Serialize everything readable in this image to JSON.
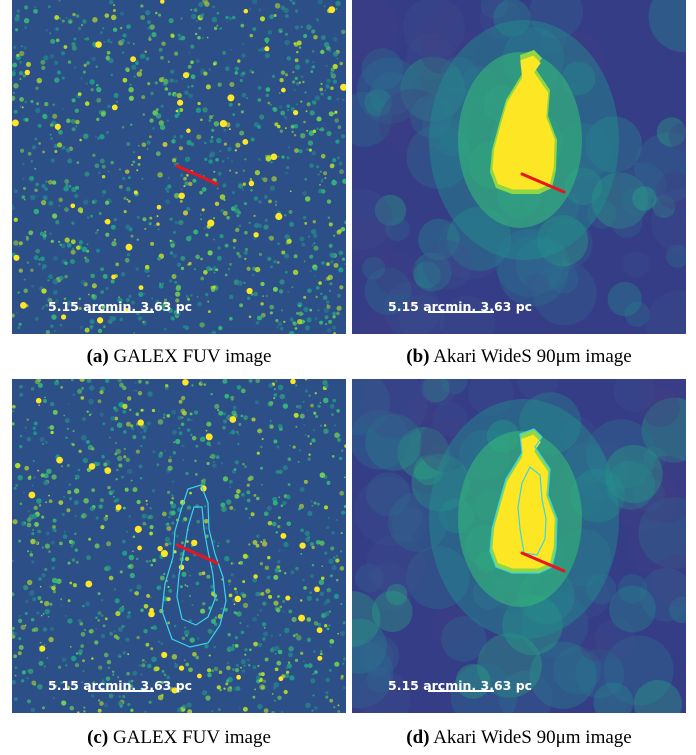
{
  "panels": [
    {
      "id": "a",
      "kind": "fuv",
      "contours": false,
      "scale_label": "5.15 arcmin, 3.63 pc",
      "caption_tag": "(a)",
      "caption_text": " GALEX FUV image"
    },
    {
      "id": "b",
      "kind": "ir",
      "contours": false,
      "scale_label": "5.15 arcmin, 3.63 pc",
      "caption_tag": "(b)",
      "caption_text": " Akari WideS 90μm image"
    },
    {
      "id": "c",
      "kind": "fuv",
      "contours": true,
      "scale_label": "5.15 arcmin, 3.63 pc",
      "caption_tag": "(c)",
      "caption_text": " GALEX FUV image"
    },
    {
      "id": "d",
      "kind": "ir",
      "contours": true,
      "scale_label": "5.15 arcmin, 3.63 pc",
      "caption_tag": "(d)",
      "caption_text": " Akari WideS 90μm image"
    }
  ],
  "colors": {
    "colormap": "viridis",
    "fuv_background": "#2d4f87",
    "ir_background": "#353d86",
    "emission": "#fde725",
    "contour": "#38d4e8",
    "arrow": "#e8141e",
    "scale": "#ffffff"
  }
}
